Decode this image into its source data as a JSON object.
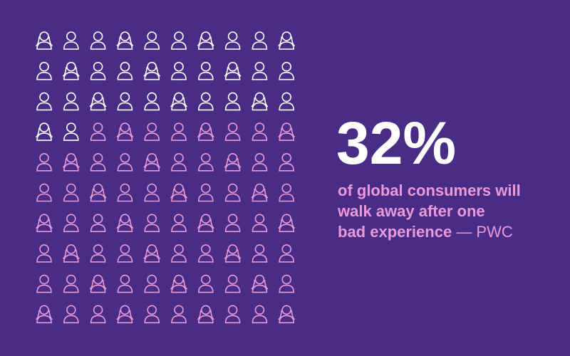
{
  "chart_data": {
    "type": "pictogram",
    "values": [
      32
    ],
    "value_labels": [
      "32%"
    ],
    "color": "#ffffff",
    "base_color": "#ea9ad8",
    "caption": [
      "of global consumers will",
      "walk away after one",
      "bad experience"
    ],
    "source": "— PWC"
  }
}
